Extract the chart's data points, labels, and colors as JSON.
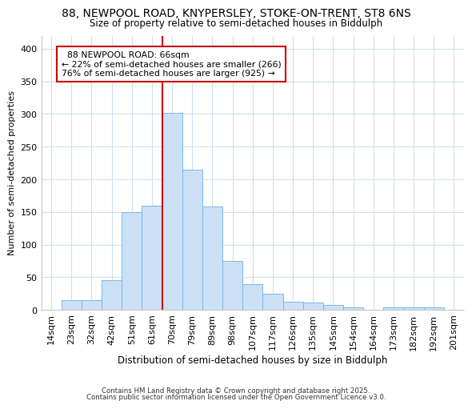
{
  "title_line1": "88, NEWPOOL ROAD, KNYPERSLEY, STOKE-ON-TRENT, ST8 6NS",
  "title_line2": "Size of property relative to semi-detached houses in Biddulph",
  "xlabel": "Distribution of semi-detached houses by size in Biddulph",
  "ylabel": "Number of semi-detached properties",
  "categories": [
    "14sqm",
    "23sqm",
    "32sqm",
    "42sqm",
    "51sqm",
    "61sqm",
    "70sqm",
    "79sqm",
    "89sqm",
    "98sqm",
    "107sqm",
    "117sqm",
    "126sqm",
    "135sqm",
    "145sqm",
    "154sqm",
    "164sqm",
    "173sqm",
    "182sqm",
    "192sqm",
    "201sqm"
  ],
  "values": [
    0,
    15,
    15,
    45,
    150,
    160,
    302,
    215,
    158,
    75,
    40,
    25,
    13,
    11,
    7,
    4,
    0,
    4,
    4,
    4,
    0
  ],
  "bar_color": "#cce0f5",
  "bar_edge_color": "#7ab8e8",
  "property_label": "88 NEWPOOL ROAD: 66sqm",
  "pct_smaller": 22,
  "pct_smaller_count": 266,
  "pct_larger": 76,
  "pct_larger_count": 925,
  "vline_color": "#cc0000",
  "vline_x_index": 6.0,
  "annotation_box_color": "#cc0000",
  "ylim": [
    0,
    420
  ],
  "yticks": [
    0,
    50,
    100,
    150,
    200,
    250,
    300,
    350,
    400
  ],
  "footer_line1": "Contains HM Land Registry data © Crown copyright and database right 2025.",
  "footer_line2": "Contains public sector information licensed under the Open Government Licence v3.0.",
  "background_color": "#ffffff",
  "grid_color": "#d0dff0"
}
